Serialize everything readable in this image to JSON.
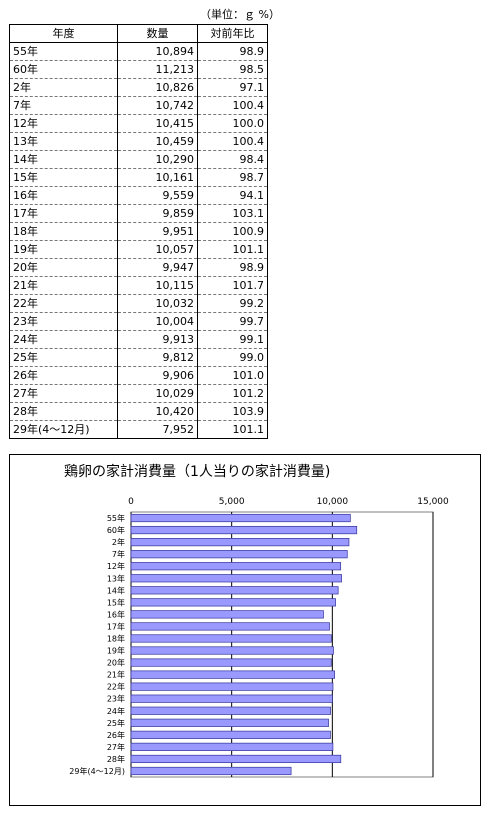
{
  "unit_note": "（単位：ｇ  %）",
  "table": {
    "headers": [
      "年度",
      "数量",
      "対前年比"
    ],
    "rows": [
      [
        "55年",
        "10,894",
        "98.9"
      ],
      [
        "60年",
        "11,213",
        "98.5"
      ],
      [
        "2年",
        "10,826",
        "97.1"
      ],
      [
        "7年",
        "10,742",
        "100.4"
      ],
      [
        "12年",
        "10,415",
        "100.0"
      ],
      [
        "13年",
        "10,459",
        "100.4"
      ],
      [
        "14年",
        "10,290",
        "98.4"
      ],
      [
        "15年",
        "10,161",
        "98.7"
      ],
      [
        "16年",
        "9,559",
        "94.1"
      ],
      [
        "17年",
        "9,859",
        "103.1"
      ],
      [
        "18年",
        "9,951",
        "100.9"
      ],
      [
        "19年",
        "10,057",
        "101.1"
      ],
      [
        "20年",
        "9,947",
        "98.9"
      ],
      [
        "21年",
        "10,115",
        "101.7"
      ],
      [
        "22年",
        "10,032",
        "99.2"
      ],
      [
        "23年",
        "10,004",
        "99.7"
      ],
      [
        "24年",
        "9,913",
        "99.1"
      ],
      [
        "25年",
        "9,812",
        "99.0"
      ],
      [
        "26年",
        "9,906",
        "101.0"
      ],
      [
        "27年",
        "10,029",
        "101.2"
      ],
      [
        "28年",
        "10,420",
        "103.9"
      ],
      [
        "29年(4～12月)",
        "7,952",
        "101.1"
      ]
    ]
  },
  "chart_data": {
    "type": "bar",
    "orientation": "horizontal",
    "title": "鶏卵の家計消費量（1人当りの家計消費量)",
    "categories": [
      "55年",
      "60年",
      "2年",
      "7年",
      "12年",
      "13年",
      "14年",
      "15年",
      "16年",
      "17年",
      "18年",
      "19年",
      "20年",
      "21年",
      "22年",
      "23年",
      "24年",
      "25年",
      "26年",
      "27年",
      "28年",
      "29年(4～12月)"
    ],
    "values": [
      10894,
      11213,
      10826,
      10742,
      10415,
      10459,
      10290,
      10161,
      9559,
      9859,
      9951,
      10057,
      9947,
      10115,
      10032,
      10004,
      9913,
      9812,
      9906,
      10029,
      10420,
      7952
    ],
    "xlim": [
      0,
      15000
    ],
    "x_ticks": [
      0,
      5000,
      10000,
      15000
    ],
    "x_tick_labels": [
      "0",
      "5,000",
      "10,000",
      "15,000"
    ],
    "x_axis_position": "top",
    "grid": "vertical",
    "bar_color": "#9999ff",
    "bar_edge_color": "#333399"
  }
}
